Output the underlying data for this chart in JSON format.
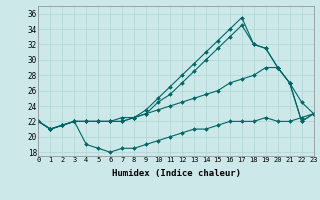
{
  "xlabel": "Humidex (Indice chaleur)",
  "bg_color": "#cce8e8",
  "grid_color": "#b0d4d4",
  "line_color": "#006666",
  "xlim": [
    0,
    23
  ],
  "ylim": [
    17.5,
    37
  ],
  "xticks": [
    0,
    1,
    2,
    3,
    4,
    5,
    6,
    7,
    8,
    9,
    10,
    11,
    12,
    13,
    14,
    15,
    16,
    17,
    18,
    19,
    20,
    21,
    22,
    23
  ],
  "yticks": [
    18,
    20,
    22,
    24,
    26,
    28,
    30,
    32,
    34,
    36
  ],
  "series": [
    {
      "x": [
        0,
        1,
        2,
        3,
        4,
        5,
        6,
        7,
        8,
        9,
        10,
        11,
        12,
        13,
        14,
        15,
        16,
        17,
        18,
        19,
        20,
        21,
        22,
        23
      ],
      "y": [
        22,
        21,
        21.5,
        22,
        19,
        18.5,
        18,
        18.5,
        18.5,
        19,
        19.5,
        20,
        20.5,
        21,
        21,
        21.5,
        22,
        22,
        22,
        22.5,
        22,
        22,
        22.5,
        23
      ]
    },
    {
      "x": [
        0,
        1,
        2,
        3,
        4,
        5,
        6,
        7,
        8,
        9,
        10,
        11,
        12,
        13,
        14,
        15,
        16,
        17,
        18,
        19,
        20,
        21,
        22,
        23
      ],
      "y": [
        22,
        21,
        21.5,
        22,
        22,
        22,
        22,
        22,
        22.5,
        23,
        23.5,
        24,
        24.5,
        25,
        25.5,
        26,
        27,
        27.5,
        28,
        29,
        29,
        27,
        24.5,
        23
      ]
    },
    {
      "x": [
        0,
        1,
        2,
        3,
        4,
        5,
        6,
        7,
        8,
        9,
        10,
        11,
        12,
        13,
        14,
        15,
        16,
        17,
        18,
        19,
        20,
        21,
        22,
        23
      ],
      "y": [
        22,
        21,
        21.5,
        22,
        22,
        22,
        22,
        22,
        22.5,
        23,
        24.5,
        25.5,
        27,
        28.5,
        30,
        31.5,
        33,
        34.5,
        32,
        31.5,
        29,
        27,
        22,
        23
      ]
    },
    {
      "x": [
        0,
        1,
        2,
        3,
        4,
        5,
        6,
        7,
        8,
        9,
        10,
        11,
        12,
        13,
        14,
        15,
        16,
        17,
        18,
        19,
        20,
        21,
        22,
        23
      ],
      "y": [
        22,
        21,
        21.5,
        22,
        22,
        22,
        22,
        22.5,
        22.5,
        23.5,
        25,
        26.5,
        28,
        29.5,
        31,
        32.5,
        34,
        35.5,
        32,
        31.5,
        29,
        27,
        22,
        23
      ]
    }
  ]
}
